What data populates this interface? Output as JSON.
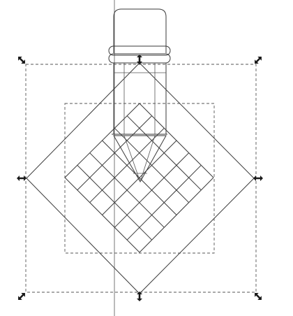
{
  "canvas": {
    "background": "#ffffff",
    "ink_color": "#3a3a3a",
    "guide_color": "#555555",
    "handle_color": "#1a1a1a"
  },
  "grid": {
    "rows": 6,
    "cols": 6
  },
  "selection": {
    "handles": [
      "resize-nw-icon",
      "resize-n-icon",
      "resize-ne-icon",
      "resize-w-icon",
      "resize-e-icon",
      "resize-sw-icon",
      "resize-s-icon",
      "resize-se-icon"
    ]
  }
}
